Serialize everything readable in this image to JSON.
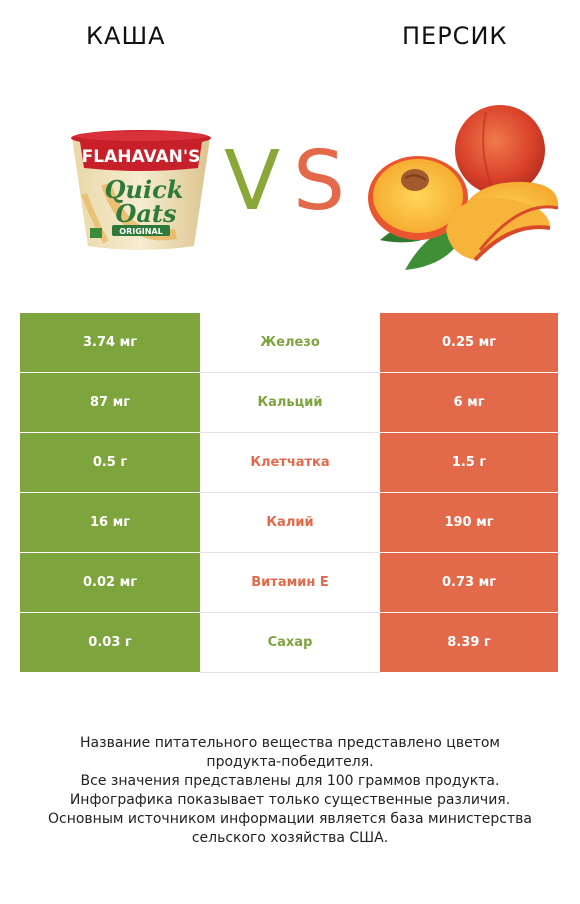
{
  "products": {
    "left": {
      "name": "КАША",
      "color": "#7ea53d"
    },
    "right": {
      "name": "ПЕРСИК",
      "color": "#e26a4b"
    }
  },
  "vs": {
    "v": "V",
    "s": "S"
  },
  "packaging": {
    "brand": "FLAHAVAN'S",
    "line1": "Quick",
    "line2": "Oats",
    "label": "ORIGINAL"
  },
  "rows": [
    {
      "nutrient": "Железо",
      "left": "3.74 мг",
      "right": "0.25 мг",
      "winner": "left"
    },
    {
      "nutrient": "Кальций",
      "left": "87 мг",
      "right": "6 мг",
      "winner": "left"
    },
    {
      "nutrient": "Клетчатка",
      "left": "0.5 г",
      "right": "1.5 г",
      "winner": "right"
    },
    {
      "nutrient": "Калий",
      "left": "16 мг",
      "right": "190 мг",
      "winner": "right"
    },
    {
      "nutrient": "Витамин E",
      "left": "0.02 мг",
      "right": "0.73 мг",
      "winner": "right"
    },
    {
      "nutrient": "Сахар",
      "left": "0.03 г",
      "right": "8.39 г",
      "winner": "left"
    }
  ],
  "footer": [
    "Название питательного вещества представлено цветом",
    "продукта-победителя.",
    "Все значения представлены для 100 граммов продукта.",
    "Инфографика показывает только существенные различия.",
    "Основным источником информации является база министерства",
    "сельского хозяйства США."
  ]
}
